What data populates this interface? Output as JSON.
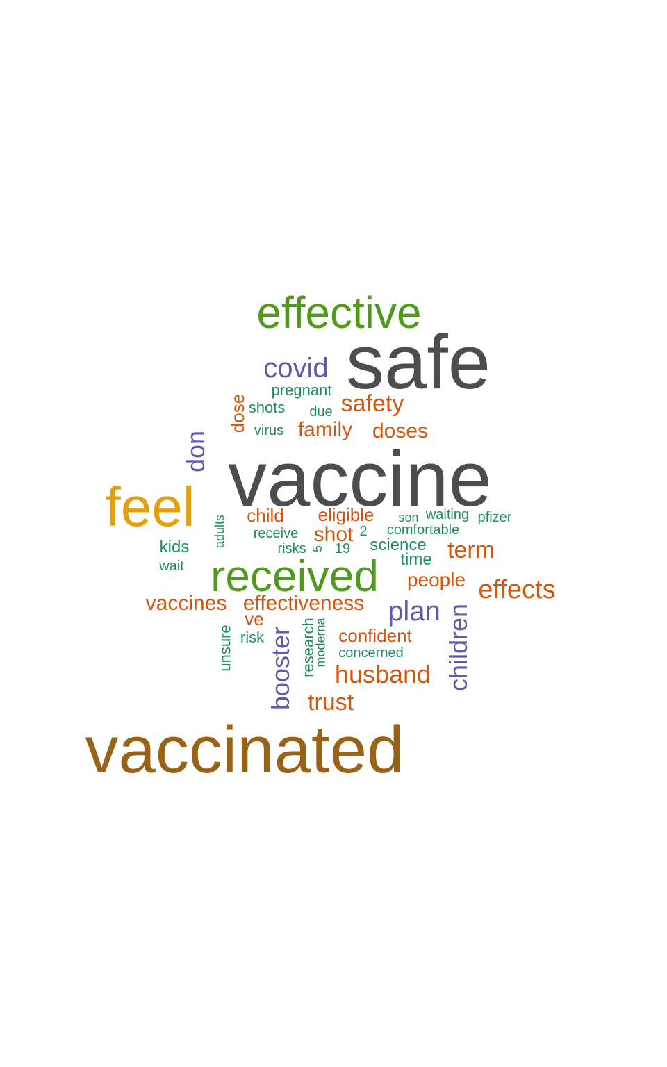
{
  "palette": {
    "dark_gray": "#4d4d4d",
    "green": "#4f9a1c",
    "gold": "#e0a010",
    "brown": "#986317",
    "purple": "#6357a8",
    "orange": "#d3560f",
    "teal": "#1f8a68"
  },
  "words": [
    {
      "text": "vaccine",
      "color": "dark_gray",
      "vertical": false
    },
    {
      "text": "safe",
      "color": "dark_gray",
      "vertical": false
    },
    {
      "text": "vaccinated",
      "color": "brown",
      "vertical": false
    },
    {
      "text": "effective",
      "color": "green",
      "vertical": false
    },
    {
      "text": "received",
      "color": "green",
      "vertical": false
    },
    {
      "text": "feel",
      "color": "gold",
      "vertical": false
    },
    {
      "text": "covid",
      "color": "purple",
      "vertical": false
    },
    {
      "text": "don",
      "color": "purple",
      "vertical": true
    },
    {
      "text": "plan",
      "color": "purple",
      "vertical": false
    },
    {
      "text": "booster",
      "color": "purple",
      "vertical": true
    },
    {
      "text": "children",
      "color": "purple",
      "vertical": true
    },
    {
      "text": "safety",
      "color": "orange",
      "vertical": false
    },
    {
      "text": "family",
      "color": "orange",
      "vertical": false
    },
    {
      "text": "doses",
      "color": "orange",
      "vertical": false
    },
    {
      "text": "dose",
      "color": "orange",
      "vertical": true
    },
    {
      "text": "child",
      "color": "orange",
      "vertical": false
    },
    {
      "text": "eligible",
      "color": "orange",
      "vertical": false
    },
    {
      "text": "shot",
      "color": "orange",
      "vertical": false
    },
    {
      "text": "term",
      "color": "orange",
      "vertical": false
    },
    {
      "text": "people",
      "color": "orange",
      "vertical": false
    },
    {
      "text": "effects",
      "color": "orange",
      "vertical": false
    },
    {
      "text": "vaccines",
      "color": "orange",
      "vertical": false
    },
    {
      "text": "effectiveness",
      "color": "orange",
      "vertical": false
    },
    {
      "text": "ve",
      "color": "orange",
      "vertical": false
    },
    {
      "text": "confident",
      "color": "orange",
      "vertical": false
    },
    {
      "text": "husband",
      "color": "orange",
      "vertical": false
    },
    {
      "text": "trust",
      "color": "orange",
      "vertical": false
    },
    {
      "text": "pregnant",
      "color": "teal",
      "vertical": false
    },
    {
      "text": "shots",
      "color": "teal",
      "vertical": false
    },
    {
      "text": "due",
      "color": "teal",
      "vertical": false
    },
    {
      "text": "virus",
      "color": "teal",
      "vertical": false
    },
    {
      "text": "adults",
      "color": "teal",
      "vertical": true
    },
    {
      "text": "receive",
      "color": "teal",
      "vertical": false
    },
    {
      "text": "kids",
      "color": "teal",
      "vertical": false
    },
    {
      "text": "wait",
      "color": "teal",
      "vertical": false
    },
    {
      "text": "risks",
      "color": "teal",
      "vertical": false
    },
    {
      "text": "5",
      "color": "teal",
      "vertical": true
    },
    {
      "text": "19",
      "color": "teal",
      "vertical": false
    },
    {
      "text": "2",
      "color": "teal",
      "vertical": false
    },
    {
      "text": "son",
      "color": "teal",
      "vertical": false
    },
    {
      "text": "waiting",
      "color": "teal",
      "vertical": false
    },
    {
      "text": "pfizer",
      "color": "teal",
      "vertical": false
    },
    {
      "text": "comfortable",
      "color": "teal",
      "vertical": false
    },
    {
      "text": "science",
      "color": "teal",
      "vertical": false
    },
    {
      "text": "time",
      "color": "teal",
      "vertical": false
    },
    {
      "text": "unsure",
      "color": "teal",
      "vertical": true
    },
    {
      "text": "risk",
      "color": "teal",
      "vertical": false
    },
    {
      "text": "research",
      "color": "teal",
      "vertical": true
    },
    {
      "text": "moderna",
      "color": "teal",
      "vertical": true
    },
    {
      "text": "concerned",
      "color": "teal",
      "vertical": false
    }
  ]
}
